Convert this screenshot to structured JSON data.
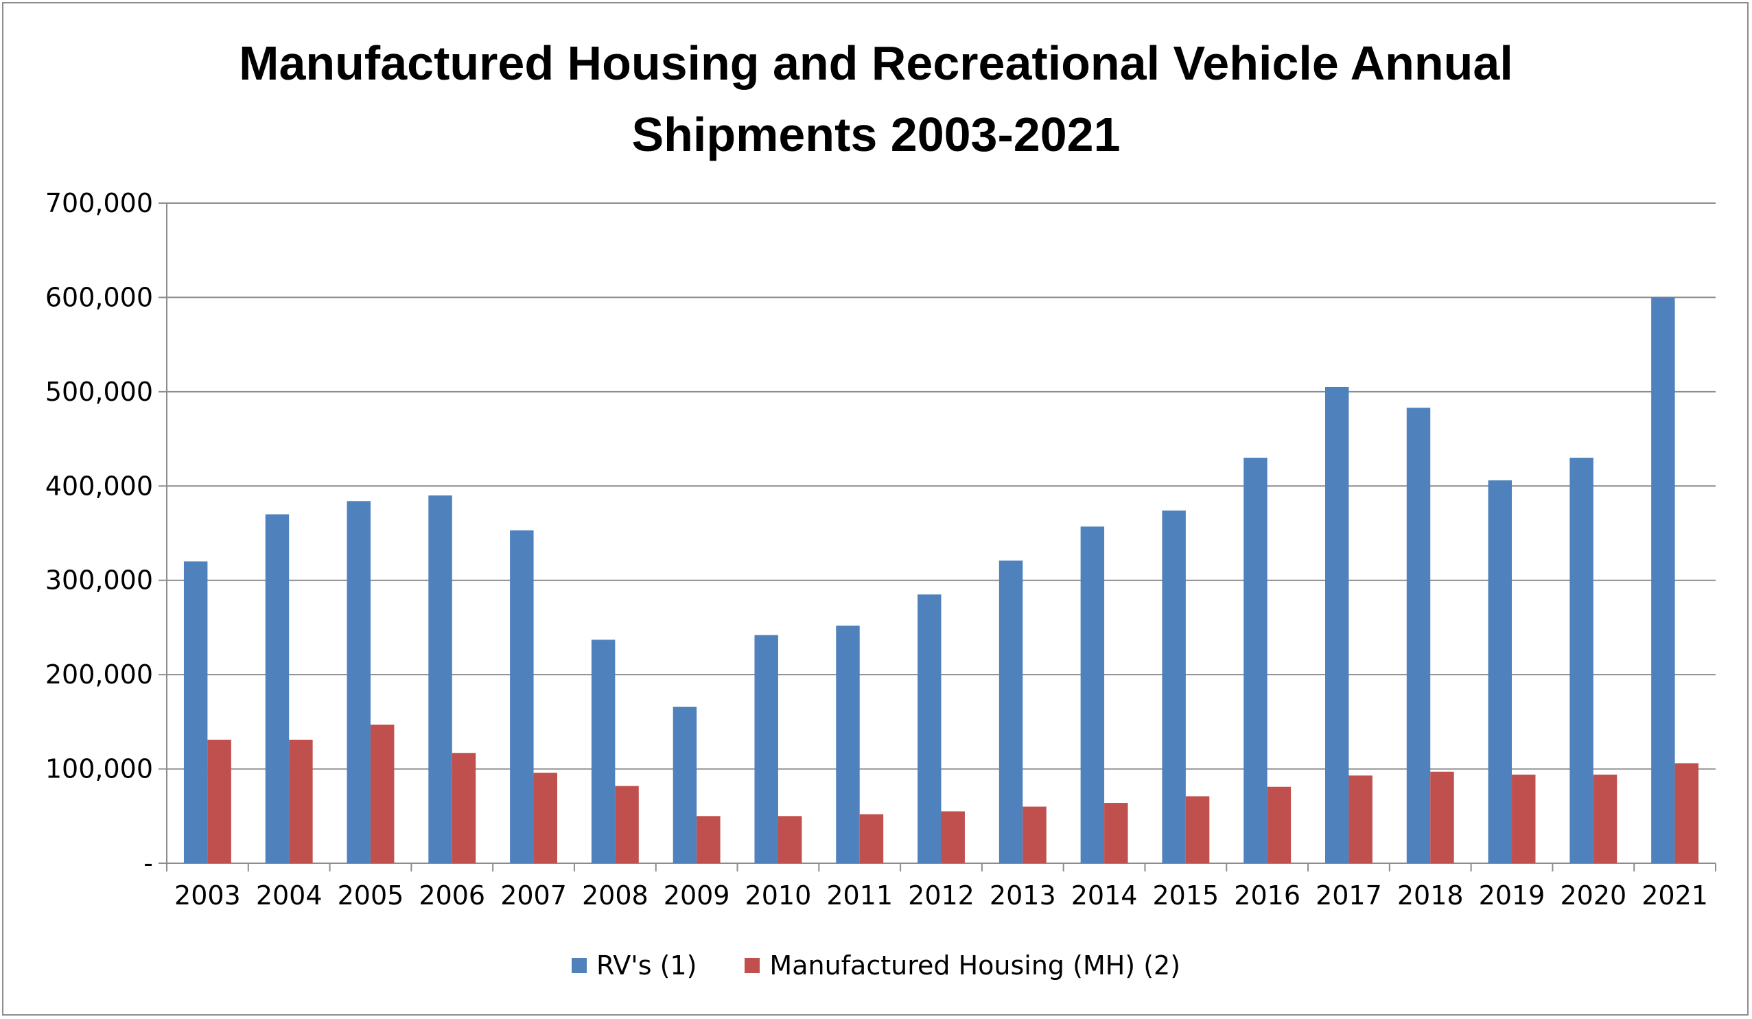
{
  "chart_data": {
    "type": "bar",
    "title_lines": [
      "Manufactured Housing and Recreational Vehicle Annual",
      "Shipments 2003-2021"
    ],
    "categories": [
      "2003",
      "2004",
      "2005",
      "2006",
      "2007",
      "2008",
      "2009",
      "2010",
      "2011",
      "2012",
      "2013",
      "2014",
      "2015",
      "2016",
      "2017",
      "2018",
      "2019",
      "2020",
      "2021"
    ],
    "series": [
      {
        "name": "RV's (1)",
        "color": "#4f81bd",
        "values": [
          320000,
          370000,
          384000,
          390000,
          353000,
          237000,
          166000,
          242000,
          252000,
          285000,
          321000,
          357000,
          374000,
          430000,
          505000,
          483000,
          406000,
          430000,
          600000
        ]
      },
      {
        "name": "Manufactured Housing (MH) (2)",
        "color": "#c0504d",
        "values": [
          131000,
          131000,
          147000,
          117000,
          96000,
          82000,
          50000,
          50000,
          52000,
          55000,
          60000,
          64000,
          71000,
          81000,
          93000,
          97000,
          94000,
          94000,
          106000
        ]
      }
    ],
    "y_ticks": [
      "-",
      "100,000",
      "200,000",
      "300,000",
      "400,000",
      "500,000",
      "600,000",
      "700,000"
    ],
    "ylim": [
      0,
      700000
    ],
    "grid": true,
    "legend_position": "bottom"
  }
}
